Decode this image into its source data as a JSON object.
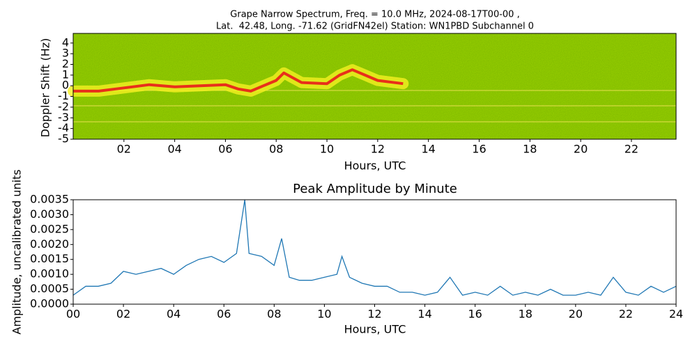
{
  "chart_data": [
    {
      "type": "spectrogram",
      "title": [
        "Grape Narrow Spectrum, Freq. = 10.0 MHz, 2024-08-17T00-00 ,",
        "Lat.  42.48, Long. -71.62 (GridFN42el) Station: WN1PBD Subchannel 0"
      ],
      "x_label": "Hours, UTC",
      "y_label": "Doppler Shift (Hz)",
      "x": [
        0,
        1,
        2,
        3,
        4,
        5,
        6,
        6.5,
        7,
        7.5,
        8,
        8.3,
        9,
        10,
        10.5,
        11,
        11.5,
        12,
        13
      ],
      "values": [
        -0.5,
        -0.5,
        -0.2,
        0.1,
        -0.1,
        0,
        0.1,
        -0.3,
        -0.5,
        0,
        0.5,
        1.2,
        0.3,
        0.2,
        1,
        1.5,
        1,
        0.5,
        0.2
      ],
      "color": "#e8301a",
      "xlim": [
        0,
        23.76
      ],
      "ylim": [
        -5,
        4.9
      ],
      "xticks": [
        {
          "value": 2,
          "label": "02"
        },
        {
          "value": 4,
          "label": "04"
        },
        {
          "value": 6,
          "label": "06"
        },
        {
          "value": 8,
          "label": "08"
        },
        {
          "value": 10,
          "label": "10"
        },
        {
          "value": 12,
          "label": "12"
        },
        {
          "value": 14,
          "label": "14"
        },
        {
          "value": 16,
          "label": "16"
        },
        {
          "value": 18,
          "label": "18"
        },
        {
          "value": 20,
          "label": "20"
        },
        {
          "value": 22,
          "label": "22"
        }
      ],
      "yticks": [
        4,
        3,
        2,
        1,
        0,
        -1,
        -2,
        -3,
        -4,
        -5
      ]
    },
    {
      "type": "line",
      "title": "Peak Amplitude by Minute",
      "x_label": "Hours, UTC",
      "y_label": "Amplitude, uncalibrated units",
      "x": [
        0,
        0.5,
        1,
        1.5,
        2,
        2.5,
        3,
        3.5,
        4,
        4.5,
        5,
        5.5,
        6,
        6.5,
        6.83,
        7,
        7.5,
        8,
        8.3,
        8.6,
        9,
        9.5,
        10,
        10.5,
        10.7,
        11,
        11.5,
        12,
        12.5,
        13,
        13.5,
        14,
        14.5,
        15,
        15.5,
        16,
        16.5,
        17,
        17.5,
        18,
        18.5,
        19,
        19.5,
        20,
        20.5,
        21,
        21.5,
        22,
        22.5,
        23,
        23.5,
        24
      ],
      "values": [
        0.0003,
        0.0006,
        0.0006,
        0.0007,
        0.0011,
        0.001,
        0.0011,
        0.0012,
        0.001,
        0.0013,
        0.0015,
        0.0016,
        0.0014,
        0.0017,
        0.0035,
        0.0017,
        0.0016,
        0.0013,
        0.0022,
        0.0009,
        0.0008,
        0.0008,
        0.0009,
        0.001,
        0.0016,
        0.0009,
        0.0007,
        0.0006,
        0.0006,
        0.0004,
        0.0004,
        0.0003,
        0.0004,
        0.0009,
        0.0003,
        0.0004,
        0.0003,
        0.0006,
        0.0003,
        0.0004,
        0.0003,
        0.0005,
        0.0003,
        0.0003,
        0.0004,
        0.0003,
        0.0009,
        0.0004,
        0.0003,
        0.0006,
        0.0004,
        0.0006
      ],
      "color": "#1f77b4",
      "xlim": [
        0,
        24
      ],
      "ylim": [
        0,
        0.0035
      ],
      "xticks": [
        {
          "value": 0,
          "label": "00"
        },
        {
          "value": 2,
          "label": "02"
        },
        {
          "value": 4,
          "label": "04"
        },
        {
          "value": 6,
          "label": "06"
        },
        {
          "value": 8,
          "label": "08"
        },
        {
          "value": 10,
          "label": "10"
        },
        {
          "value": 12,
          "label": "12"
        },
        {
          "value": 14,
          "label": "14"
        },
        {
          "value": 16,
          "label": "16"
        },
        {
          "value": 18,
          "label": "18"
        },
        {
          "value": 20,
          "label": "20"
        },
        {
          "value": 22,
          "label": "22"
        },
        {
          "value": 24,
          "label": "24"
        }
      ],
      "yticks": [
        {
          "value": 0,
          "label": "0.0000"
        },
        {
          "value": 0.0005,
          "label": "0.0005"
        },
        {
          "value": 0.001,
          "label": "0.0010"
        },
        {
          "value": 0.0015,
          "label": "0.0015"
        },
        {
          "value": 0.002,
          "label": "0.0020"
        },
        {
          "value": 0.0025,
          "label": "0.0025"
        },
        {
          "value": 0.003,
          "label": "0.0030"
        },
        {
          "value": 0.0035,
          "label": "0.0035"
        }
      ]
    }
  ]
}
